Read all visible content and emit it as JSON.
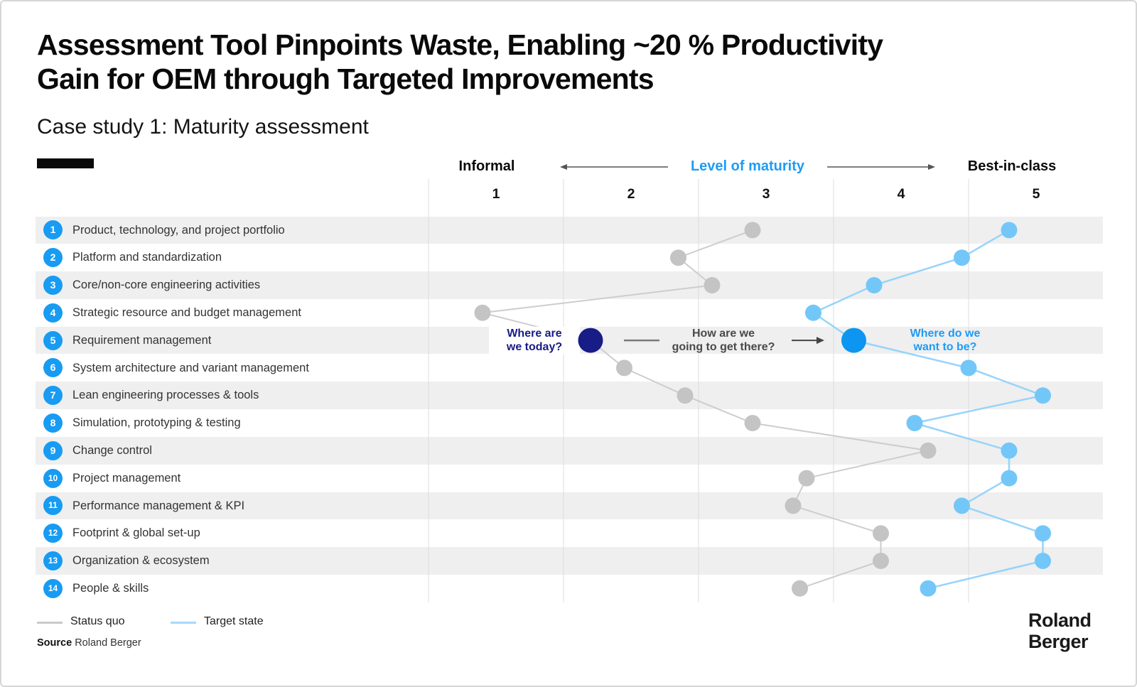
{
  "slide": {
    "title_lines": [
      "Assessment Tool Pinpoints Waste, Enabling ~20 % Productivity",
      "Gain for OEM through Targeted Improvements"
    ],
    "subtitle": "Case study 1: Maturity assessment",
    "source_label": "Source",
    "source_value": "Roland Berger",
    "logo_lines": [
      "Roland",
      "Berger"
    ]
  },
  "axis": {
    "left_label": "Informal",
    "center_label": "Level of maturity",
    "right_label": "Best-in-class",
    "columns": [
      "1",
      "2",
      "3",
      "4",
      "5"
    ]
  },
  "annotations": {
    "today": [
      "Where are",
      "we today?"
    ],
    "how": [
      "How are we",
      "going to get there?"
    ],
    "target": [
      "Where do we",
      "want to be?"
    ]
  },
  "legend": [
    {
      "label": "Status quo",
      "color": "#c9c9c9"
    },
    {
      "label": "Target state",
      "color": "#a7d9fa"
    }
  ],
  "chart_data": {
    "type": "line",
    "orientation": "horizontal-dot-profile",
    "xlabel": "Level of maturity",
    "x_ticks": [
      1,
      2,
      3,
      4,
      5
    ],
    "xlim": [
      0.5,
      5.5
    ],
    "grid": "vertical-band-boundaries",
    "row_numbers": [
      "1",
      "2",
      "3",
      "4",
      "5",
      "6",
      "7",
      "8",
      "9",
      "10",
      "11",
      "12",
      "13",
      "14"
    ],
    "categories": [
      "Product, technology, and project portfolio",
      "Platform and standardization",
      "Core/non-core engineering activities",
      "Strategic resource and budget management",
      "Requirement management",
      "System architecture and variant management",
      "Lean engineering processes & tools",
      "Simulation, prototyping & testing",
      "Change control",
      "Project management",
      "Performance management & KPI",
      "Footprint & global set-up",
      "Organization & ecosystem",
      "People & skills"
    ],
    "series": [
      {
        "name": "Status quo",
        "values": [
          2.9,
          2.35,
          2.6,
          0.9,
          1.7,
          1.95,
          2.4,
          2.9,
          4.2,
          3.3,
          3.2,
          3.85,
          3.85,
          3.25
        ]
      },
      {
        "name": "Target state",
        "values": [
          4.8,
          4.45,
          3.8,
          3.35,
          3.65,
          4.5,
          5.05,
          4.1,
          4.8,
          4.8,
          4.45,
          5.05,
          5.05,
          4.2
        ]
      }
    ],
    "highlight_row": "Requirement management"
  },
  "colors": {
    "badge_blue": "#189bf2",
    "big_blue_dot": "#0c95f1",
    "navy": "#171c86",
    "target_dot": "#73c7f8",
    "target_line": "#96d4fa",
    "status_dot": "#c4c4c4",
    "status_line": "#cdcdcd",
    "stripe": "#efefef",
    "gridline": "#dcdcdc",
    "maturity_blue": "#1e9bf5",
    "how_gray": "#4a4a4a"
  }
}
